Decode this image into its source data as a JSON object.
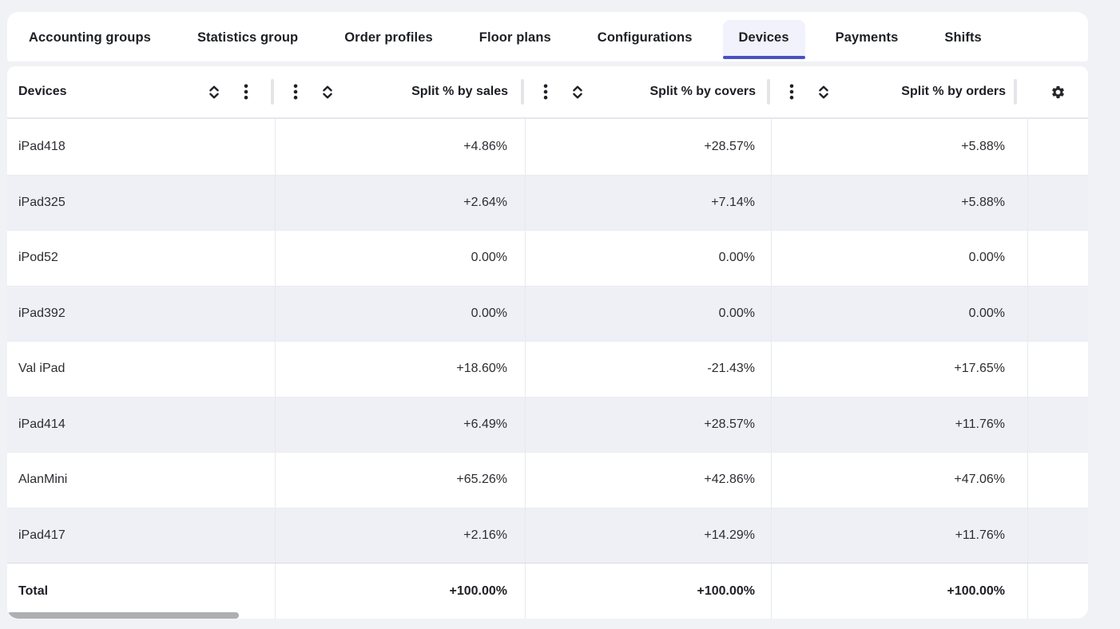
{
  "tabs": {
    "items": [
      {
        "label": "Accounting groups",
        "slug": "accounting-groups",
        "selected": false
      },
      {
        "label": "Statistics group",
        "slug": "statistics-group",
        "selected": false
      },
      {
        "label": "Order profiles",
        "slug": "order-profiles",
        "selected": false
      },
      {
        "label": "Floor plans",
        "slug": "floor-plans",
        "selected": false
      },
      {
        "label": "Configurations",
        "slug": "configurations",
        "selected": false
      },
      {
        "label": "Devices",
        "slug": "devices",
        "selected": true
      },
      {
        "label": "Payments",
        "slug": "payments",
        "selected": false
      },
      {
        "label": "Shifts",
        "slug": "shifts",
        "selected": false
      }
    ]
  },
  "table": {
    "columns": [
      {
        "label": "Devices",
        "align": "left"
      },
      {
        "label": "Split % by sales",
        "align": "right"
      },
      {
        "label": "Split % by covers",
        "align": "right"
      },
      {
        "label": "Split % by orders",
        "align": "right"
      }
    ],
    "rows": [
      {
        "device": "iPad418",
        "sales": "+4.86%",
        "covers": "+28.57%",
        "orders": "+5.88%"
      },
      {
        "device": "iPad325",
        "sales": "+2.64%",
        "covers": "+7.14%",
        "orders": "+5.88%"
      },
      {
        "device": "iPod52",
        "sales": "0.00%",
        "covers": "0.00%",
        "orders": "0.00%"
      },
      {
        "device": "iPad392",
        "sales": "0.00%",
        "covers": "0.00%",
        "orders": "0.00%"
      },
      {
        "device": "Val iPad",
        "sales": "+18.60%",
        "covers": "-21.43%",
        "orders": "+17.65%"
      },
      {
        "device": "iPad414",
        "sales": "+6.49%",
        "covers": "+28.57%",
        "orders": "+11.76%"
      },
      {
        "device": "AlanMini",
        "sales": "+65.26%",
        "covers": "+42.86%",
        "orders": "+47.06%"
      },
      {
        "device": "iPad417",
        "sales": "+2.16%",
        "covers": "+14.29%",
        "orders": "+11.76%"
      }
    ],
    "total_row": {
      "device": "Total",
      "sales": "+100.00%",
      "covers": "+100.00%",
      "orders": "+100.00%"
    }
  },
  "icons": {
    "sort": "sort-unfold-icon",
    "column_menu": "kebab-menu-icon",
    "settings": "gear-icon"
  },
  "colors": {
    "accent_underline": "#4a50c5",
    "selected_tab_bg": "#f1f2fb",
    "page_bg": "#f1f2f6",
    "zebra_row_bg": "#eff0f5",
    "panel_bg": "#ffffff",
    "scroll_thumb": "#aeafb2"
  }
}
